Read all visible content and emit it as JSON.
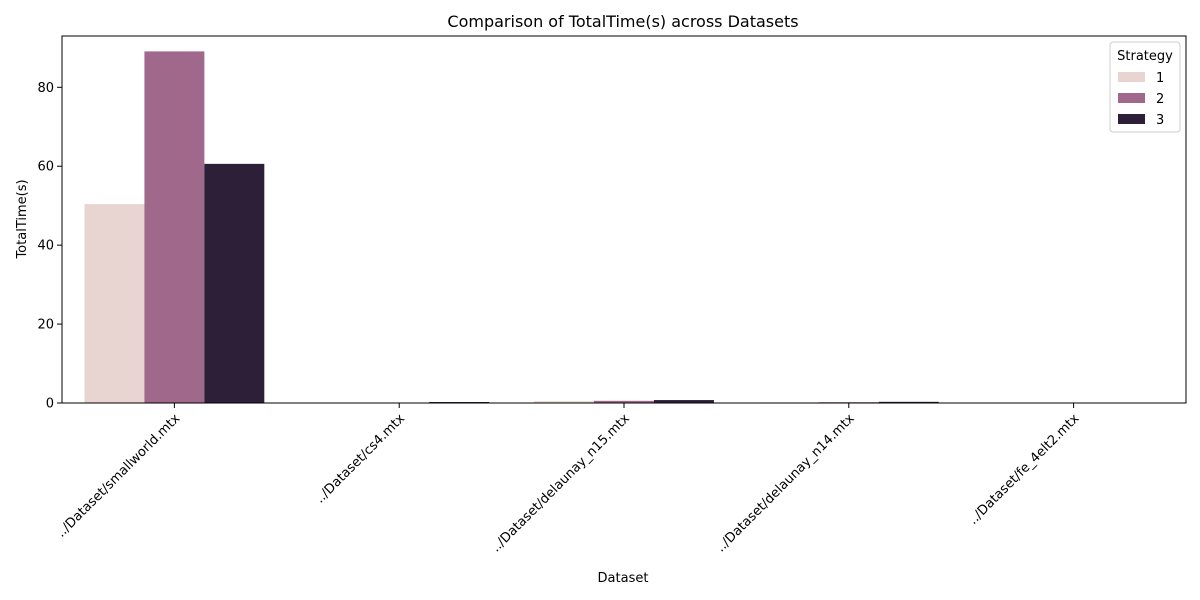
{
  "chart_data": {
    "type": "bar",
    "title": "Comparison of TotalTime(s) across Datasets",
    "xlabel": "Dataset",
    "ylabel": "TotalTime(s)",
    "categories": [
      "../Dataset/smallworld.mtx",
      "../Dataset/cs4.mtx",
      "../Dataset/delaunay_n15.mtx",
      "../Dataset/delaunay_n14.mtx",
      "../Dataset/fe_4elt2.mtx"
    ],
    "series": [
      {
        "name": "1",
        "color": "#e8d4d0",
        "values": [
          50.4,
          0.05,
          0.45,
          0.15,
          0.05
        ]
      },
      {
        "name": "2",
        "color": "#a0698b",
        "values": [
          89.1,
          0.1,
          0.55,
          0.2,
          0.07
        ]
      },
      {
        "name": "3",
        "color": "#2e1f38",
        "values": [
          60.6,
          0.25,
          0.75,
          0.3,
          0.08
        ]
      }
    ],
    "ylim": [
      0,
      93
    ],
    "yticks": [
      0,
      20,
      40,
      60,
      80
    ],
    "xtick_rotation": 45,
    "legend": {
      "title": "Strategy",
      "position": "top-right"
    },
    "grid": false
  }
}
